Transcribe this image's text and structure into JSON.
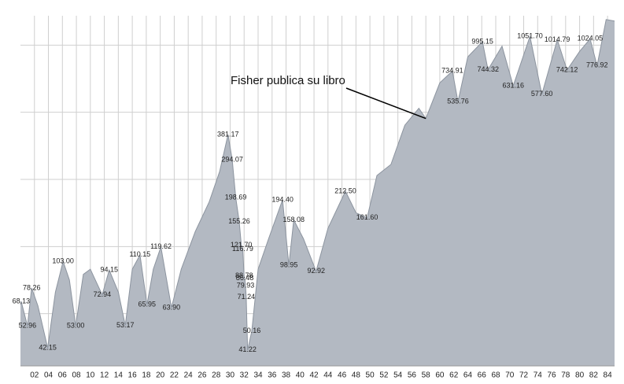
{
  "chart_data": {
    "type": "area",
    "x": [
      1900,
      1900.1,
      1901.0,
      1901.6,
      1902.5,
      1903.9,
      1905,
      1906.1,
      1907,
      1907.9,
      1909,
      1910,
      1911.7,
      1912.7,
      1914,
      1915.0,
      1916,
      1917.1,
      1918.1,
      1919,
      1920.1,
      1921.6,
      1923,
      1925,
      1927,
      1928.5,
      1929.7,
      1930.3,
      1930.8,
      1931.3,
      1931.6,
      1931.8,
      1932.0,
      1932.1,
      1932.2,
      1932.3,
      1932.5,
      1933.1,
      1934,
      1935.5,
      1937.5,
      1938.4,
      1939.1,
      1940.5,
      1942.3,
      1944,
      1946.5,
      1948,
      1949.6,
      1951,
      1953,
      1955,
      1957,
      1958,
      1960,
      1961.8,
      1962.6,
      1964,
      1966.1,
      1966.9,
      1968.9,
      1970.5,
      1972.9,
      1974.6,
      1976.8,
      1978.2,
      1980,
      1981.5,
      1982.5,
      1983.8,
      1985
    ],
    "values": [
      66,
      68.13,
      52.96,
      78.26,
      65,
      42.15,
      75,
      103,
      85,
      53,
      90,
      95,
      72.94,
      94.15,
      75,
      53.17,
      95,
      110.15,
      65.95,
      95,
      119.62,
      63.9,
      95,
      140,
      190,
      260,
      381.17,
      294.07,
      198.69,
      155.26,
      121.7,
      116.79,
      88.78,
      86.48,
      79.93,
      71.24,
      41.22,
      50.16,
      95,
      130,
      194.4,
      98.95,
      158.08,
      130,
      92.92,
      145,
      212.5,
      170,
      161.6,
      250,
      280,
      420,
      500,
      450,
      650,
      734.91,
      535.76,
      850,
      995.15,
      744.32,
      950,
      631.16,
      1051.7,
      577.6,
      1014.79,
      742.12,
      900,
      1024.05,
      776.92,
      1250,
      1230
    ],
    "value_labels": [
      null,
      "68.13",
      "52.96",
      "78.26",
      null,
      "42.15",
      null,
      "103.00",
      null,
      "53.00",
      null,
      null,
      "72.94",
      "94.15",
      null,
      "53.17",
      null,
      "110.15",
      "65.95",
      null,
      "119.62",
      "63.90",
      null,
      null,
      null,
      null,
      "381.17",
      "294.07",
      "198.69",
      "155.26",
      "121.70",
      "116.79",
      "88.78",
      "86.48",
      "79.93",
      "71.24",
      "41.22",
      "50.16",
      null,
      null,
      "194.40",
      "98.95",
      "158.08",
      null,
      "92.92",
      null,
      "212.50",
      null,
      "161.60",
      null,
      null,
      null,
      null,
      null,
      null,
      "734.91",
      "535.76",
      null,
      "995.15",
      "744.32",
      null,
      "631.16",
      "1051.70",
      "577.60",
      "1014.79",
      "742.12",
      null,
      "1024.05",
      "776.92",
      null,
      null
    ],
    "color": "#b3b9c2",
    "line_color": "#8c949f",
    "log_scale": true,
    "grid": true,
    "xlim": [
      1900,
      1985
    ],
    "ylim": [
      35,
      1300
    ],
    "yticks": [
      60,
      120,
      240,
      480,
      960
    ],
    "xticks": [
      {
        "value": 1902,
        "label": "02"
      },
      {
        "value": 1904,
        "label": "04"
      },
      {
        "value": 1906,
        "label": "06"
      },
      {
        "value": 1908,
        "label": "08"
      },
      {
        "value": 1910,
        "label": "10"
      },
      {
        "value": 1912,
        "label": "12"
      },
      {
        "value": 1914,
        "label": "14"
      },
      {
        "value": 1916,
        "label": "16"
      },
      {
        "value": 1918,
        "label": "18"
      },
      {
        "value": 1920,
        "label": "20"
      },
      {
        "value": 1922,
        "label": "22"
      },
      {
        "value": 1924,
        "label": "24"
      },
      {
        "value": 1926,
        "label": "26"
      },
      {
        "value": 1928,
        "label": "28"
      },
      {
        "value": 1930,
        "label": "30"
      },
      {
        "value": 1932,
        "label": "32"
      },
      {
        "value": 1934,
        "label": "34"
      },
      {
        "value": 1936,
        "label": "36"
      },
      {
        "value": 1938,
        "label": "38"
      },
      {
        "value": 1940,
        "label": "40"
      },
      {
        "value": 1942,
        "label": "42"
      },
      {
        "value": 1944,
        "label": "44"
      },
      {
        "value": 1946,
        "label": "46"
      },
      {
        "value": 1948,
        "label": "48"
      },
      {
        "value": 1950,
        "label": "50"
      },
      {
        "value": 1952,
        "label": "52"
      },
      {
        "value": 1954,
        "label": "54"
      },
      {
        "value": 1956,
        "label": "56"
      },
      {
        "value": 1958,
        "label": "58"
      },
      {
        "value": 1960,
        "label": "60"
      },
      {
        "value": 1962,
        "label": "62"
      },
      {
        "value": 1964,
        "label": "64"
      },
      {
        "value": 1966,
        "label": "66"
      },
      {
        "value": 1968,
        "label": "68"
      },
      {
        "value": 1970,
        "label": "70"
      },
      {
        "value": 1972,
        "label": "72"
      },
      {
        "value": 1974,
        "label": "74"
      },
      {
        "value": 1976,
        "label": "76"
      },
      {
        "value": 1978,
        "label": "78"
      },
      {
        "value": 1980,
        "label": "80"
      },
      {
        "value": 1982,
        "label": "82"
      },
      {
        "value": 1984,
        "label": "84"
      }
    ],
    "annotation": {
      "text": "Fisher publica su libro",
      "x": 1958
    }
  }
}
